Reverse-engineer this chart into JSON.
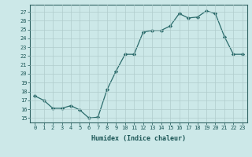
{
  "x": [
    0,
    1,
    2,
    3,
    4,
    5,
    6,
    7,
    8,
    9,
    10,
    11,
    12,
    13,
    14,
    15,
    16,
    17,
    18,
    19,
    20,
    21,
    22,
    23
  ],
  "y": [
    17.5,
    17.0,
    16.1,
    16.1,
    16.4,
    15.9,
    15.0,
    15.1,
    18.2,
    20.3,
    22.2,
    22.2,
    24.7,
    24.9,
    24.9,
    25.4,
    26.8,
    26.3,
    26.4,
    27.1,
    26.8,
    24.2,
    22.2,
    22.2
  ],
  "xlabel": "Humidex (Indice chaleur)",
  "ylabel_ticks": [
    15,
    16,
    17,
    18,
    19,
    20,
    21,
    22,
    23,
    24,
    25,
    26,
    27
  ],
  "ylim": [
    14.5,
    27.8
  ],
  "xlim": [
    -0.5,
    23.5
  ],
  "bg_color": "#cce8e8",
  "line_color": "#2a6b6b",
  "grid_color": "#b0cccc",
  "tick_label_color": "#1a5555",
  "spine_color": "#336666"
}
